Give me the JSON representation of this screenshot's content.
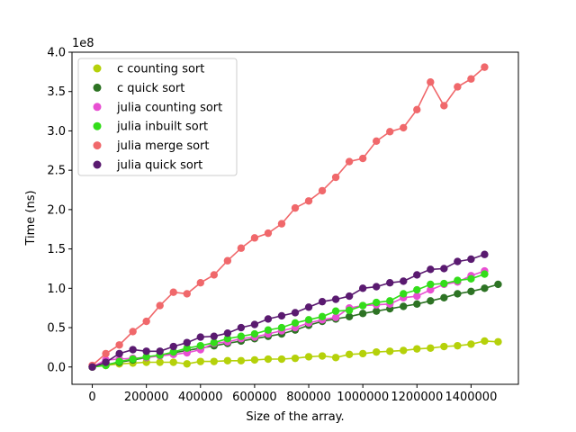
{
  "chart_data": {
    "type": "line",
    "title": "",
    "xlabel": "Size of the array.",
    "ylabel": "Time (ns)",
    "y_offset_label": "1e8",
    "xlim": [
      -75000,
      1575000
    ],
    "ylim": [
      -0.22,
      4.0
    ],
    "x_ticks": [
      0,
      200000,
      400000,
      600000,
      800000,
      1000000,
      1200000,
      1400000
    ],
    "x_tick_labels": [
      "0",
      "200000",
      "400000",
      "600000",
      "800000",
      "1000000",
      "1200000",
      "1400000"
    ],
    "y_ticks": [
      0.0,
      0.5,
      1.0,
      1.5,
      2.0,
      2.5,
      3.0,
      3.5,
      4.0
    ],
    "y_tick_labels": [
      "0.0",
      "0.5",
      "1.0",
      "1.5",
      "2.0",
      "2.5",
      "3.0",
      "3.5",
      "4.0"
    ],
    "grid": false,
    "legend_position": "top-left",
    "series": [
      {
        "name": "c counting sort",
        "color": "#b5d10a",
        "x": [
          0,
          50000,
          100000,
          150000,
          200000,
          250000,
          300000,
          350000,
          400000,
          450000,
          500000,
          550000,
          600000,
          650000,
          700000,
          750000,
          800000,
          850000,
          900000,
          950000,
          1000000,
          1050000,
          1100000,
          1150000,
          1200000,
          1250000,
          1300000,
          1350000,
          1400000,
          1450000,
          1500000
        ],
        "y": [
          0.0,
          0.02,
          0.04,
          0.05,
          0.06,
          0.06,
          0.06,
          0.04,
          0.07,
          0.07,
          0.08,
          0.08,
          0.09,
          0.1,
          0.1,
          0.11,
          0.13,
          0.14,
          0.12,
          0.16,
          0.17,
          0.19,
          0.2,
          0.21,
          0.23,
          0.24,
          0.26,
          0.27,
          0.29,
          0.33,
          0.32
        ]
      },
      {
        "name": "c quick sort",
        "color": "#2d7324",
        "x": [
          0,
          50000,
          100000,
          150000,
          200000,
          250000,
          300000,
          350000,
          400000,
          450000,
          500000,
          550000,
          600000,
          650000,
          700000,
          750000,
          800000,
          850000,
          900000,
          950000,
          1000000,
          1050000,
          1100000,
          1150000,
          1200000,
          1250000,
          1300000,
          1350000,
          1400000,
          1450000,
          1500000
        ],
        "y": [
          0.0,
          0.03,
          0.06,
          0.09,
          0.12,
          0.15,
          0.18,
          0.21,
          0.24,
          0.27,
          0.3,
          0.33,
          0.36,
          0.39,
          0.42,
          0.47,
          0.53,
          0.58,
          0.61,
          0.64,
          0.68,
          0.71,
          0.74,
          0.77,
          0.8,
          0.84,
          0.88,
          0.93,
          0.96,
          1.0,
          1.05
        ]
      },
      {
        "name": "julia counting sort",
        "color": "#e84fd2",
        "x": [
          0,
          50000,
          100000,
          150000,
          200000,
          250000,
          300000,
          350000,
          400000,
          450000,
          500000,
          550000,
          600000,
          650000,
          700000,
          750000,
          800000,
          850000,
          900000,
          950000,
          1000000,
          1050000,
          1100000,
          1150000,
          1200000,
          1250000,
          1300000,
          1350000,
          1400000,
          1450000
        ],
        "y": [
          0.0,
          0.09,
          0.1,
          0.11,
          0.12,
          0.14,
          0.16,
          0.18,
          0.22,
          0.3,
          0.32,
          0.36,
          0.38,
          0.42,
          0.46,
          0.5,
          0.56,
          0.6,
          0.63,
          0.75,
          0.78,
          0.79,
          0.8,
          0.88,
          0.9,
          0.98,
          1.05,
          1.08,
          1.16,
          1.22
        ]
      },
      {
        "name": "julia inbuilt sort",
        "color": "#33dd1a",
        "x": [
          0,
          50000,
          100000,
          150000,
          200000,
          250000,
          300000,
          350000,
          400000,
          450000,
          500000,
          550000,
          600000,
          650000,
          700000,
          750000,
          800000,
          850000,
          900000,
          950000,
          1000000,
          1050000,
          1100000,
          1150000,
          1200000,
          1250000,
          1300000,
          1350000,
          1400000,
          1450000
        ],
        "y": [
          0.0,
          0.02,
          0.07,
          0.1,
          0.13,
          0.15,
          0.19,
          0.24,
          0.27,
          0.31,
          0.36,
          0.39,
          0.42,
          0.47,
          0.5,
          0.56,
          0.6,
          0.64,
          0.71,
          0.72,
          0.78,
          0.82,
          0.84,
          0.93,
          0.98,
          1.05,
          1.06,
          1.1,
          1.12,
          1.18
        ]
      },
      {
        "name": "julia merge sort",
        "color": "#f0686b",
        "x": [
          0,
          50000,
          100000,
          150000,
          200000,
          250000,
          300000,
          350000,
          400000,
          450000,
          500000,
          550000,
          600000,
          650000,
          700000,
          750000,
          800000,
          850000,
          900000,
          950000,
          1000000,
          1050000,
          1100000,
          1150000,
          1200000,
          1250000,
          1300000,
          1350000,
          1400000,
          1450000
        ],
        "y": [
          0.02,
          0.17,
          0.28,
          0.45,
          0.58,
          0.78,
          0.95,
          0.93,
          1.07,
          1.17,
          1.35,
          1.51,
          1.64,
          1.7,
          1.82,
          2.02,
          2.11,
          2.24,
          2.41,
          2.61,
          2.65,
          2.87,
          2.99,
          3.04,
          3.27,
          3.62,
          3.32,
          3.56,
          3.66,
          3.81
        ]
      },
      {
        "name": "julia quick sort",
        "color": "#5a1a70",
        "x": [
          0,
          50000,
          100000,
          150000,
          200000,
          250000,
          300000,
          350000,
          400000,
          450000,
          500000,
          550000,
          600000,
          650000,
          700000,
          750000,
          800000,
          850000,
          900000,
          950000,
          1000000,
          1050000,
          1100000,
          1150000,
          1200000,
          1250000,
          1300000,
          1350000,
          1400000,
          1450000
        ],
        "y": [
          0.0,
          0.06,
          0.17,
          0.22,
          0.2,
          0.2,
          0.26,
          0.31,
          0.38,
          0.39,
          0.43,
          0.5,
          0.54,
          0.61,
          0.65,
          0.69,
          0.76,
          0.83,
          0.86,
          0.9,
          1.0,
          1.02,
          1.07,
          1.09,
          1.17,
          1.24,
          1.25,
          1.34,
          1.37,
          1.43
        ]
      }
    ]
  }
}
